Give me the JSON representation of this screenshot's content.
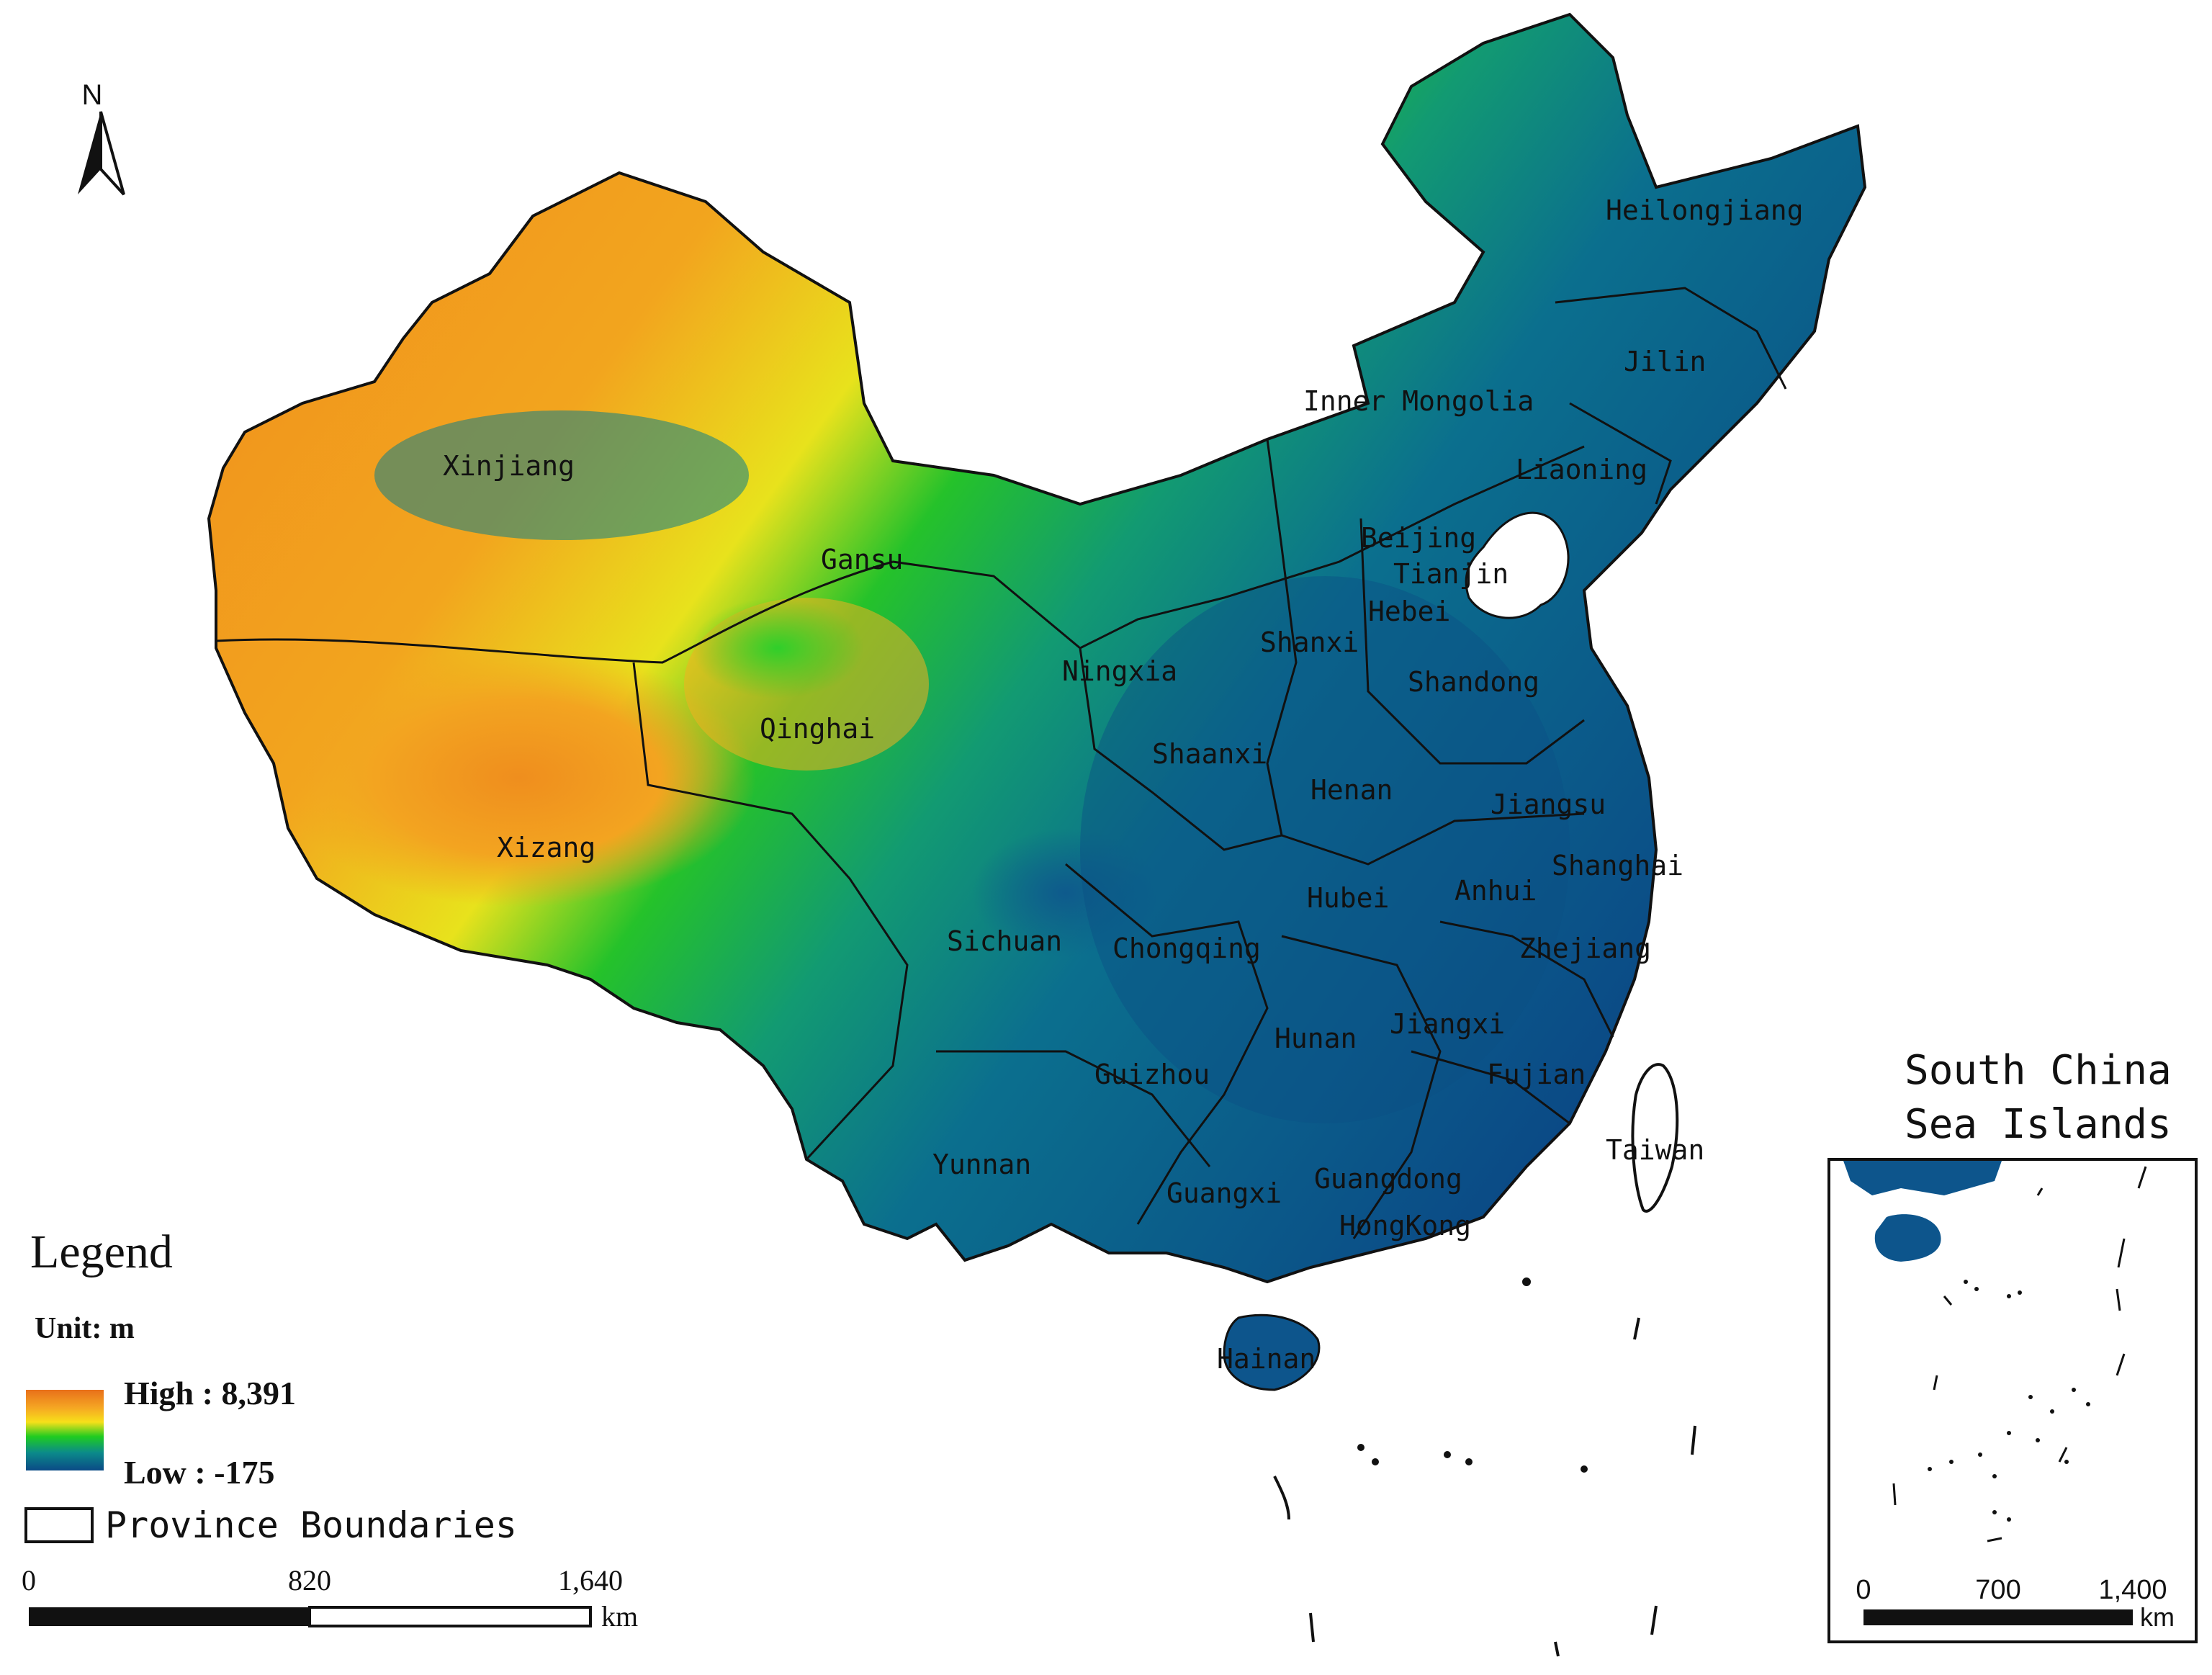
{
  "north_arrow": {
    "label": "N"
  },
  "provinces": [
    "Heilongjiang",
    "Jilin",
    "Liaoning",
    "Inner Mongolia",
    "Xinjiang",
    "Gansu",
    "Beijing",
    "Tianjin",
    "Hebei",
    "Shanxi",
    "Ningxia",
    "Shandong",
    "Qinghai",
    "Shaanxi",
    "Henan",
    "Jiangsu",
    "Xizang",
    "Shanghai",
    "Anhui",
    "Hubei",
    "Sichuan",
    "Chongqing",
    "Zhejiang",
    "Hunan",
    "Jiangxi",
    "Guizhou",
    "Fujian",
    "Yunnan",
    "Taiwan",
    "Guangxi",
    "Guangdong",
    "HongKong",
    "Hainan"
  ],
  "legend": {
    "title": "Legend",
    "unit": "Unit: m",
    "high": "High : 8,391",
    "low": "Low : -175",
    "boundaries_label": "Province Boundaries",
    "ramp_colors": [
      "#e8701a",
      "#f5a623",
      "#f7e01a",
      "#1fcc20",
      "#0b8a8a",
      "#0b4a86"
    ]
  },
  "scale_bar": {
    "ticks": [
      "0",
      "820",
      "1,640"
    ],
    "unit": "km"
  },
  "inset": {
    "title_line1": "South China",
    "title_line2": "Sea Islands",
    "ticks": [
      "0",
      "700",
      "1,400"
    ],
    "unit": "km"
  }
}
